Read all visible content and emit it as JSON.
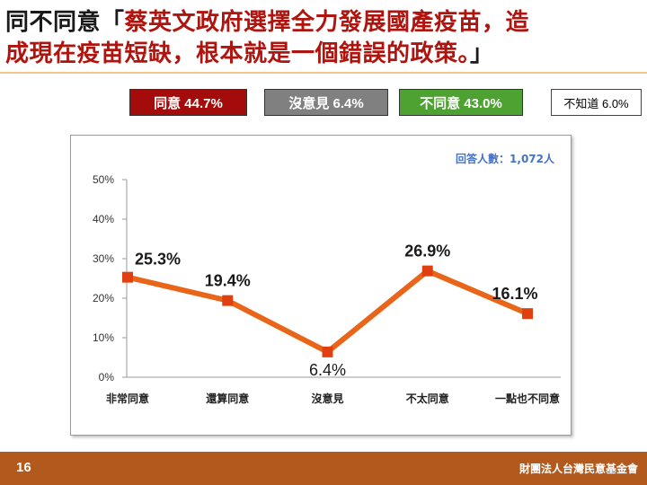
{
  "title": {
    "prefix": "同不同意「",
    "quote_line1": "蔡英文政府選擇全力發展國產疫苗，造",
    "quote_line2": "成現在疫苗短缺，根本就是一個錯誤的政策。",
    "suffix": "」"
  },
  "legend": {
    "agree": "同意 44.7%",
    "no_opinion": "沒意見 6.4%",
    "disagree": "不同意 43.0%",
    "dont_know": "不知道 6.0%"
  },
  "colors": {
    "agree": "#a40b0b",
    "no_opinion": "#808080",
    "disagree": "#4ea231",
    "line": "#e8651a",
    "marker": "#e0400f",
    "accent_text": "#4472c4",
    "footer": "#b25a1e"
  },
  "chart_data": {
    "type": "line",
    "categories": [
      "非常同意",
      "還算同意",
      "沒意見",
      "不太同意",
      "一點也不同意"
    ],
    "series": [
      {
        "values": [
          25.3,
          19.4,
          6.4,
          26.9,
          16.1
        ]
      }
    ],
    "data_labels": [
      "25.3%",
      "19.4%",
      "6.4%",
      "26.9%",
      "16.1%"
    ],
    "y_ticks": [
      "0%",
      "10%",
      "20%",
      "30%",
      "40%",
      "50%"
    ],
    "ylim": [
      0,
      50
    ],
    "grid": false,
    "annotation": "回答人數：1,072人"
  },
  "footer": {
    "page_number": "16",
    "organization": "財團法人台灣民意基金會"
  }
}
